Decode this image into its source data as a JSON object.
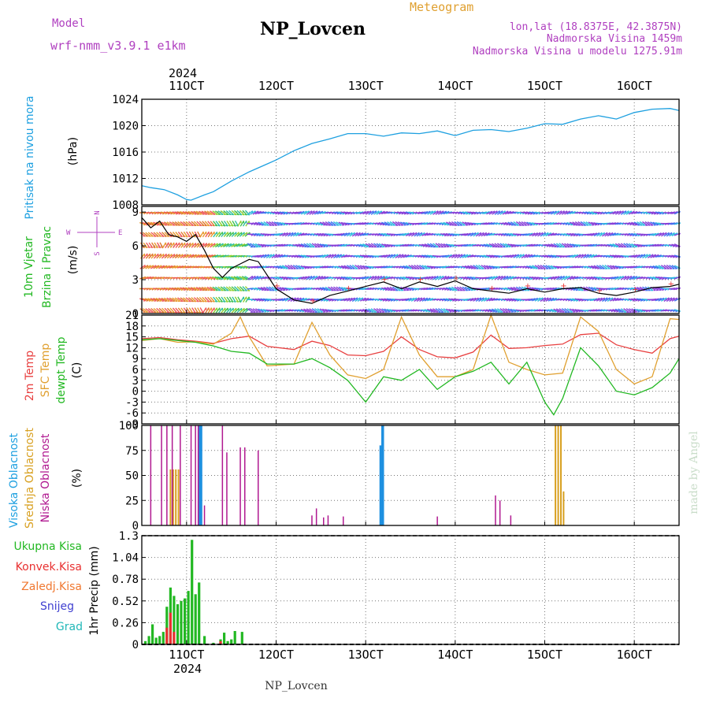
{
  "header": {
    "model_label": "Model",
    "model_name": "wrf-nmm_v3.9.1 e1km",
    "station": "NP_Lovcen",
    "meteogram": "Meteogram",
    "lonlat": "lon,lat (18.8375E, 42.3875N)",
    "elevation": "Nadmorska Visina 1459m",
    "model_elevation": "Nadmorska Visina u modelu 1275.91m",
    "footer_station": "NP_Lovcen",
    "watermark": "made by Angel"
  },
  "time_axis": {
    "year": "2024",
    "ticks": [
      "11OCT",
      "12OCT",
      "13OCT",
      "14OCT",
      "15OCT",
      "16OCT"
    ],
    "start_day": 10.5,
    "end_day": 16.5
  },
  "colors": {
    "pressure": "#1ea0e0",
    "temp2m": "#e84040",
    "sfc_temp": "#e0a030",
    "dewpt": "#22b822",
    "high_cloud": "#1e90e0",
    "mid_cloud": "#d8a020",
    "low_cloud": "#b01890",
    "total_precip": "#22b822",
    "conv_precip": "#e83030",
    "frz_precip": "#f07830",
    "snow": "#4040d0",
    "hail": "#22b8b8",
    "purple_text": "#b040c0"
  },
  "chart_data": [
    {
      "type": "line",
      "ylabel_left": "Pritisak na nivou mora",
      "unit": "(hPa)",
      "ylim": [
        1008,
        1024
      ],
      "yticks": [
        "1008",
        "1012",
        "1016",
        "1020",
        "1024"
      ],
      "series": [
        {
          "x": [
            10.5,
            10.6,
            10.75,
            10.9,
            11.0,
            11.05,
            11.2,
            11.3,
            11.4,
            11.5,
            11.7,
            11.9,
            12.0,
            12.2,
            12.4,
            12.6,
            12.8,
            13.0,
            13.2,
            13.4,
            13.6,
            13.8,
            14.0,
            14.2,
            14.4,
            14.6,
            14.8,
            15.0,
            15.2,
            15.4,
            15.6,
            15.8,
            16.0,
            16.2,
            16.4,
            16.5
          ],
          "values": [
            1010.9,
            1010.6,
            1010.3,
            1009.5,
            1008.8,
            1008.7,
            1009.5,
            1010.0,
            1010.8,
            1011.6,
            1013.0,
            1014.2,
            1014.8,
            1016.2,
            1017.3,
            1018.0,
            1018.8,
            1018.8,
            1018.4,
            1018.9,
            1018.8,
            1019.2,
            1018.5,
            1019.3,
            1019.4,
            1019.1,
            1019.6,
            1020.3,
            1020.2,
            1021.0,
            1021.5,
            1021.0,
            1022.0,
            1022.5,
            1022.6,
            1022.3
          ]
        }
      ]
    },
    {
      "type": "line",
      "ylabel_left": [
        "10m Vjetar",
        "Brzina i Pravac"
      ],
      "unit": "(m/s)",
      "compass": [
        "N",
        "W",
        "E",
        "S"
      ],
      "ylim": [
        0,
        9.5
      ],
      "yticks": [
        "0",
        "3",
        "6",
        "9"
      ],
      "series": [
        {
          "x": [
            10.5,
            10.6,
            10.7,
            10.8,
            10.9,
            11.0,
            11.1,
            11.2,
            11.3,
            11.4,
            11.5,
            11.6,
            11.7,
            11.8,
            12.0,
            12.2,
            12.4,
            12.6,
            12.8,
            13.0,
            13.2,
            13.4,
            13.6,
            13.8,
            14.0,
            14.2,
            14.4,
            14.6,
            14.8,
            15.0,
            15.2,
            15.4,
            15.6,
            15.8,
            16.0,
            16.2,
            16.4,
            16.5
          ],
          "values": [
            8.5,
            7.6,
            8.2,
            7.0,
            6.8,
            6.4,
            7.0,
            5.6,
            4.0,
            3.2,
            4.0,
            4.4,
            4.8,
            4.6,
            2.2,
            1.2,
            0.9,
            1.6,
            2.0,
            2.4,
            2.8,
            2.2,
            2.8,
            2.4,
            2.9,
            2.2,
            2.0,
            1.8,
            2.2,
            1.9,
            2.2,
            2.3,
            1.8,
            1.6,
            1.9,
            2.3,
            2.4,
            2.6
          ]
        }
      ]
    },
    {
      "type": "line",
      "ylabel_left": [
        "2m Temp",
        "SFC Temp",
        "dewpt Temp"
      ],
      "unit": "(C)",
      "ylim": [
        -9,
        21
      ],
      "yticks": [
        "-9",
        "-6",
        "-3",
        "0",
        "3",
        "6",
        "9",
        "12",
        "15",
        "18",
        "21"
      ],
      "series": [
        {
          "name": "2m Temp",
          "x": [
            10.5,
            10.7,
            10.9,
            11.1,
            11.3,
            11.5,
            11.7,
            11.9,
            12.2,
            12.4,
            12.6,
            12.8,
            13.0,
            13.2,
            13.4,
            13.6,
            13.8,
            14.0,
            14.2,
            14.4,
            14.6,
            14.8,
            15.0,
            15.2,
            15.4,
            15.6,
            15.8,
            16.0,
            16.2,
            16.4,
            16.5
          ],
          "values": [
            14.5,
            14.8,
            14.2,
            13.8,
            13.2,
            14.5,
            15.2,
            12.4,
            11.5,
            13.8,
            12.6,
            10.0,
            9.8,
            11.0,
            15.0,
            11.5,
            9.5,
            9.2,
            10.8,
            15.5,
            11.8,
            12.0,
            12.6,
            13.0,
            15.6,
            16.0,
            12.8,
            11.5,
            10.5,
            14.5,
            15.2
          ]
        },
        {
          "name": "SFC Temp",
          "x": [
            10.5,
            10.7,
            10.9,
            11.1,
            11.3,
            11.5,
            11.6,
            11.7,
            11.9,
            12.2,
            12.4,
            12.6,
            12.8,
            13.0,
            13.2,
            13.4,
            13.6,
            13.8,
            14.0,
            14.2,
            14.4,
            14.6,
            14.8,
            15.0,
            15.2,
            15.4,
            15.6,
            15.8,
            16.0,
            16.2,
            16.4,
            16.5
          ],
          "values": [
            14.0,
            14.5,
            13.5,
            13.6,
            13.0,
            16.0,
            20.5,
            15.0,
            7.0,
            7.5,
            19.0,
            10.0,
            4.5,
            3.5,
            6.0,
            20.5,
            10.0,
            4.0,
            4.0,
            6.0,
            21.0,
            8.0,
            6.0,
            4.5,
            5.0,
            20.5,
            16.5,
            6.0,
            2.0,
            4.0,
            20.0,
            19.8
          ]
        },
        {
          "name": "dewpt Temp",
          "x": [
            10.5,
            10.7,
            10.9,
            11.1,
            11.3,
            11.5,
            11.7,
            11.9,
            12.2,
            12.4,
            12.6,
            12.8,
            13.0,
            13.2,
            13.4,
            13.6,
            13.8,
            14.0,
            14.2,
            14.4,
            14.6,
            14.8,
            15.0,
            15.1,
            15.2,
            15.4,
            15.6,
            15.8,
            16.0,
            16.2,
            16.4,
            16.5
          ],
          "values": [
            14.2,
            14.5,
            14.0,
            13.5,
            12.5,
            11.0,
            10.5,
            7.5,
            7.5,
            9.0,
            6.5,
            3.0,
            -3.0,
            4.0,
            3.0,
            6.0,
            0.5,
            4.0,
            5.5,
            8.0,
            2.0,
            8.0,
            -3.0,
            -6.5,
            -2.0,
            12.0,
            7.0,
            0.0,
            -1.0,
            1.0,
            5.0,
            9.0
          ]
        }
      ]
    },
    {
      "type": "bar",
      "ylabel_left": [
        "Visoka Oblacnost",
        "Srednja Oblacnost",
        "Niska Oblacnost"
      ],
      "unit": "(%)",
      "ylim": [
        0,
        100
      ],
      "yticks": [
        "0",
        "25",
        "50",
        "75",
        "100"
      ],
      "series": [
        {
          "name": "Visoka Oblacnost",
          "x": [
            11.15,
            11.16,
            13.17,
            13.19
          ],
          "values": [
            100,
            100,
            80,
            100
          ]
        },
        {
          "name": "Srednja Oblacnost",
          "x": [
            10.82,
            10.85,
            10.88,
            10.91,
            15.12,
            15.15,
            15.18,
            15.21
          ],
          "values": [
            56,
            56,
            56,
            56,
            100,
            100,
            100,
            34
          ]
        },
        {
          "name": "Niska Oblacnost",
          "x": [
            10.6,
            10.72,
            10.78,
            10.84,
            10.93,
            11.05,
            11.1,
            11.13,
            11.2,
            11.4,
            11.45,
            11.6,
            11.65,
            11.8,
            12.4,
            12.45,
            12.53,
            12.58,
            12.75,
            13.8,
            14.45,
            14.5,
            14.62
          ],
          "values": [
            100,
            100,
            100,
            100,
            100,
            100,
            100,
            100,
            20,
            100,
            73,
            78,
            78,
            75,
            10,
            17,
            8,
            10,
            9,
            9,
            30,
            25,
            10
          ]
        }
      ]
    },
    {
      "type": "bar",
      "ylabel_left": [
        "Ukupna Kisa",
        "Konvek.Kisa",
        "Zaledj.Kisa",
        "Snijeg",
        "Grad"
      ],
      "unit": "1hr Precip (mm)",
      "ylim": [
        0,
        1.3
      ],
      "yticks": [
        "0",
        "0.26",
        "0.52",
        "0.78",
        "1.04",
        "1.3"
      ],
      "series": [
        {
          "name": "Ukupna Kisa",
          "x": [
            10.54,
            10.58,
            10.62,
            10.66,
            10.7,
            10.74,
            10.78,
            10.82,
            10.86,
            10.9,
            10.94,
            10.98,
            11.02,
            11.06,
            11.1,
            11.14,
            11.2,
            11.3,
            11.38,
            11.42,
            11.46,
            11.5,
            11.54,
            11.62
          ],
          "values": [
            0.04,
            0.1,
            0.24,
            0.08,
            0.1,
            0.15,
            0.45,
            0.68,
            0.58,
            0.48,
            0.52,
            0.55,
            0.64,
            1.25,
            0.6,
            0.74,
            0.1,
            0.02,
            0.06,
            0.14,
            0.04,
            0.06,
            0.16,
            0.15
          ]
        },
        {
          "name": "Konvek.Kisa",
          "x": [
            10.78,
            10.82,
            10.86,
            11.38
          ],
          "values": [
            0.2,
            0.38,
            0.15,
            0.04
          ]
        }
      ]
    }
  ]
}
